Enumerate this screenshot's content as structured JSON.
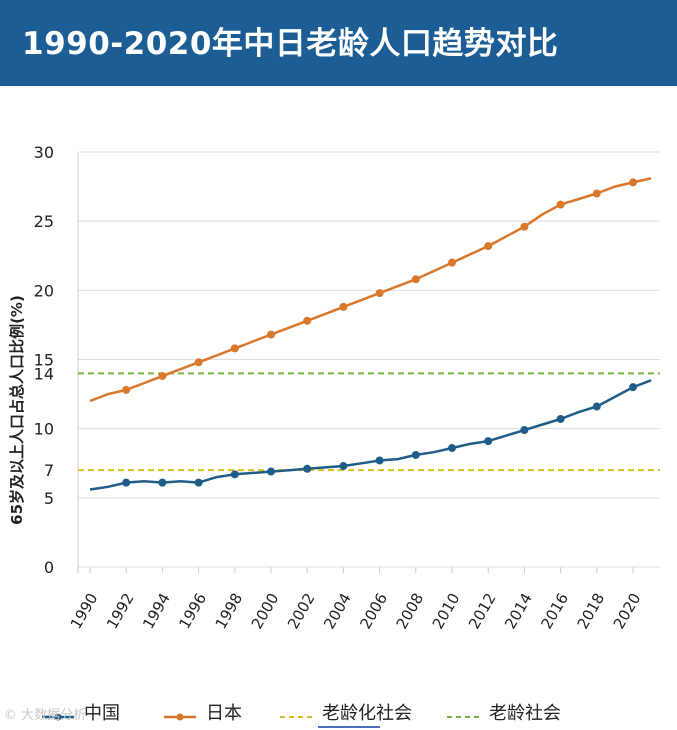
{
  "title": "1990-2020年中日老龄人口趋势对比",
  "watermark": "© 大数据分析",
  "colors": {
    "china": "#1f5d88",
    "japan": "#d9772a",
    "aging": "#d9c21b",
    "aged": "#7cb342",
    "grid": "#dddddd",
    "title_bg": "#1b5d94"
  },
  "chart_data": {
    "type": "line",
    "title": "1990-2020年中日老龄人口趋势对比",
    "ylabel": "65岁及以上人口占总人口比例(%)",
    "xlabel": "",
    "ylim": [
      0,
      30
    ],
    "xlim": [
      1990,
      2021
    ],
    "y_ticks": [
      "0",
      "5",
      "7",
      "10",
      "14",
      "15",
      "20",
      "25",
      "30"
    ],
    "x_ticks": [
      "1990",
      "1992",
      "1994",
      "1996",
      "1998",
      "2000",
      "2002",
      "2004",
      "2006",
      "2008",
      "2010",
      "2012",
      "2014",
      "2016",
      "2018",
      "2020"
    ],
    "series": [
      {
        "name": "中国",
        "color": "#1f5d88",
        "x": [
          1990,
          1991,
          1992,
          1993,
          1994,
          1995,
          1996,
          1997,
          1998,
          1999,
          2000,
          2001,
          2002,
          2003,
          2004,
          2005,
          2006,
          2007,
          2008,
          2009,
          2010,
          2011,
          2012,
          2013,
          2014,
          2015,
          2016,
          2017,
          2018,
          2019,
          2020,
          2021
        ],
        "values": [
          5.6,
          5.8,
          6.1,
          6.2,
          6.1,
          6.2,
          6.1,
          6.5,
          6.7,
          6.8,
          6.9,
          7.0,
          7.1,
          7.2,
          7.3,
          7.5,
          7.7,
          7.8,
          8.1,
          8.3,
          8.6,
          8.9,
          9.1,
          9.5,
          9.9,
          10.3,
          10.7,
          11.2,
          11.6,
          12.3,
          13.0,
          13.5
        ],
        "markers": [
          1992,
          1994,
          1996,
          1998,
          2000,
          2002,
          2004,
          2006,
          2008,
          2010,
          2012,
          2014,
          2016,
          2018,
          2020
        ]
      },
      {
        "name": "日本",
        "color": "#d9772a",
        "x": [
          1990,
          1991,
          1992,
          1993,
          1994,
          1995,
          1996,
          1997,
          1998,
          1999,
          2000,
          2001,
          2002,
          2003,
          2004,
          2005,
          2006,
          2007,
          2008,
          2009,
          2010,
          2011,
          2012,
          2013,
          2014,
          2015,
          2016,
          2017,
          2018,
          2019,
          2020,
          2021
        ],
        "values": [
          12.0,
          12.5,
          12.8,
          13.3,
          13.8,
          14.3,
          14.8,
          15.3,
          15.8,
          16.3,
          16.8,
          17.3,
          17.8,
          18.3,
          18.8,
          19.3,
          19.8,
          20.3,
          20.8,
          21.4,
          22.0,
          22.6,
          23.2,
          23.9,
          24.6,
          25.5,
          26.2,
          26.6,
          27.0,
          27.5,
          27.8,
          28.1
        ],
        "markers": [
          1992,
          1994,
          1996,
          1998,
          2000,
          2002,
          2004,
          2006,
          2008,
          2010,
          2012,
          2014,
          2016,
          2018,
          2020
        ]
      }
    ],
    "reference_lines": [
      {
        "name": "老龄化社会",
        "y": 7,
        "color": "#d9c21b"
      },
      {
        "name": "老龄社会",
        "y": 14,
        "color": "#7cb342"
      }
    ],
    "legend": [
      {
        "name": "中国",
        "color": "#1f5d88",
        "style": "line-marker"
      },
      {
        "name": "日本",
        "color": "#d9772a",
        "style": "line-marker"
      },
      {
        "name": "老龄化社会",
        "color": "#d9c21b",
        "style": "dashed"
      },
      {
        "name": "老龄社会",
        "color": "#7cb342",
        "style": "dashed"
      }
    ],
    "legend_position": "bottom"
  }
}
